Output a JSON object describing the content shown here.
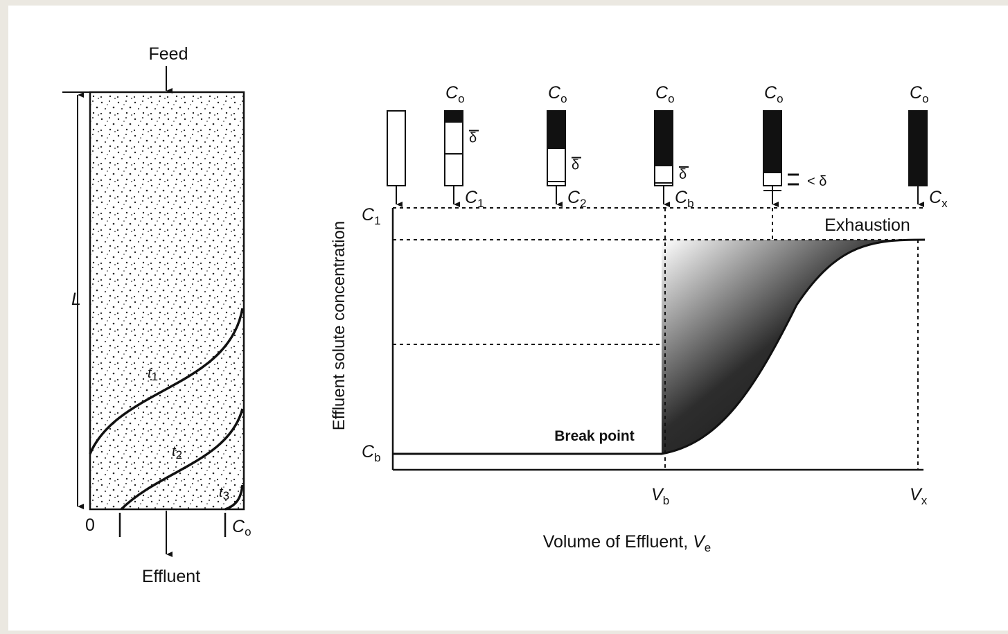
{
  "column": {
    "feed": "Feed",
    "length": "L",
    "effluent": "Effluent",
    "zero": "0",
    "outlet_concentration": {
      "base": "C",
      "sub": "o"
    },
    "curves": [
      {
        "base": "t",
        "sub": "1"
      },
      {
        "base": "t",
        "sub": "2"
      },
      {
        "base": "t",
        "sub": "3"
      }
    ]
  },
  "breakthrough": {
    "y_axis_label": "Effluent solute concentration",
    "x_axis_label": {
      "base": "Volume of Effluent, ",
      "var": "V",
      "sub": "e"
    },
    "break_point": "Break point",
    "exhaustion": "Exhaustion",
    "y_labels": [
      {
        "base": "C",
        "sub": "1"
      },
      {
        "base": "C",
        "sub": "b"
      }
    ],
    "x_labels": [
      {
        "base": "V",
        "sub": "b"
      },
      {
        "base": "V",
        "sub": "x"
      }
    ],
    "columns": [
      {
        "top": null,
        "bottom": null,
        "zone": null
      },
      {
        "top": {
          "base": "C",
          "sub": "o"
        },
        "bottom": {
          "base": "C",
          "sub": "1"
        },
        "zone": "δ"
      },
      {
        "top": {
          "base": "C",
          "sub": "o"
        },
        "bottom": {
          "base": "C",
          "sub": "2"
        },
        "zone": "δ"
      },
      {
        "top": {
          "base": "C",
          "sub": "o"
        },
        "bottom": {
          "base": "C",
          "sub": "b"
        },
        "zone": "δ"
      },
      {
        "top": {
          "base": "C",
          "sub": "o"
        },
        "bottom": null,
        "zone": "< δ"
      },
      {
        "top": {
          "base": "C",
          "sub": "o"
        },
        "bottom": {
          "base": "C",
          "sub": "x"
        },
        "zone": null
      }
    ]
  }
}
